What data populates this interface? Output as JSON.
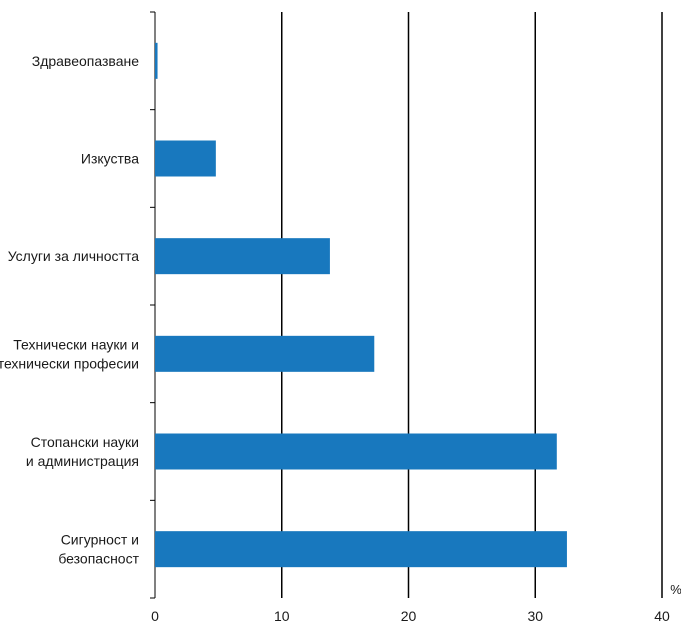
{
  "chart_data": {
    "type": "bar",
    "orientation": "horizontal",
    "categories": [
      [
        "Здравеопазване"
      ],
      [
        "Изкуства"
      ],
      [
        "Услуги за личността"
      ],
      [
        "Технически науки и",
        "технически професии"
      ],
      [
        "Стопански науки",
        "и администрация"
      ],
      [
        "Сигурност и",
        "безопасност"
      ]
    ],
    "values": [
      0.2,
      4.8,
      13.8,
      17.3,
      31.7,
      32.5
    ],
    "xlim": [
      0,
      40
    ],
    "xticks": [
      0,
      10,
      20,
      30,
      40
    ],
    "xlabel": "%",
    "grid": true,
    "bar_color": "#1878be",
    "grid_color": "#000000"
  }
}
